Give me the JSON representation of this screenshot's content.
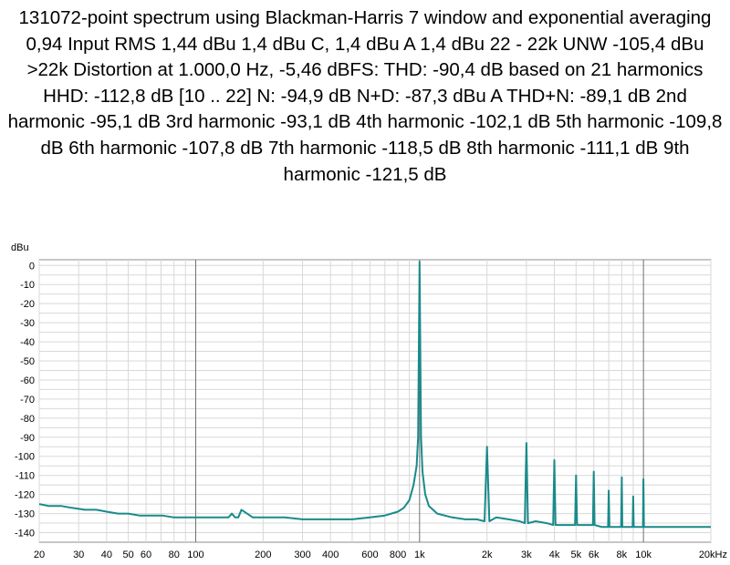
{
  "chart_data": {
    "type": "line",
    "title": "131072-point spectrum using Blackman-Harris 7 window and exponential averaging 0,94 Input RMS 1,44 dBu 1,4 dBu C, 1,4 dBu A 1,4 dBu 22 - 22k UNW -105,4 dBu >22k Distortion at 1.000,0 Hz, -5,46 dBFS: THD: -90,4 dB based on 21 harmonics HHD: -112,8 dB [10 .. 22] N: -94,9 dB N+D: -87,3 dBu A THD+N: -89,1 dB 2nd harmonic -95,1 dB 3rd harmonic -93,1 dB 4th harmonic -102,1 dB 5th harmonic -109,8 dB 6th harmonic -107,8 dB 7th harmonic -118,5 dB 8th harmonic -111,1 dB 9th harmonic -121,5 dB",
    "ylabel": "dBu",
    "x_scale": "log",
    "xlim": [
      20,
      20000
    ],
    "ylim": [
      -145,
      3
    ],
    "grid": true,
    "x_ticks": [
      {
        "value": 20,
        "label": "20"
      },
      {
        "value": 30,
        "label": "30"
      },
      {
        "value": 40,
        "label": "40"
      },
      {
        "value": 50,
        "label": "50"
      },
      {
        "value": 60,
        "label": "60"
      },
      {
        "value": 80,
        "label": "80"
      },
      {
        "value": 100,
        "label": "100"
      },
      {
        "value": 200,
        "label": "200"
      },
      {
        "value": 300,
        "label": "300"
      },
      {
        "value": 400,
        "label": "400"
      },
      {
        "value": 600,
        "label": "600"
      },
      {
        "value": 800,
        "label": "800"
      },
      {
        "value": 1000,
        "label": "1k"
      },
      {
        "value": 2000,
        "label": "2k"
      },
      {
        "value": 3000,
        "label": "3k"
      },
      {
        "value": 4000,
        "label": "4k"
      },
      {
        "value": 5000,
        "label": "5k"
      },
      {
        "value": 6000,
        "label": "6k"
      },
      {
        "value": 8000,
        "label": "8k"
      },
      {
        "value": 10000,
        "label": "10k"
      },
      {
        "value": 20000,
        "label": "20kHz"
      }
    ],
    "y_ticks": [
      0,
      -10,
      -20,
      -30,
      -40,
      -50,
      -60,
      -70,
      -80,
      -90,
      -100,
      -110,
      -120,
      -130,
      -140
    ],
    "series": [
      {
        "color": "#1a8a8a",
        "x": [
          20,
          22,
          25,
          28,
          32,
          36,
          40,
          45,
          50,
          56,
          63,
          71,
          80,
          90,
          100,
          112,
          125,
          140,
          145,
          150,
          155,
          160,
          180,
          200,
          250,
          300,
          350,
          400,
          500,
          600,
          700,
          800,
          850,
          900,
          940,
          970,
          985,
          1000,
          1015,
          1030,
          1060,
          1100,
          1200,
          1400,
          1600,
          1800,
          1950,
          2000,
          2050,
          2200,
          2500,
          2800,
          2950,
          3000,
          3050,
          3300,
          3700,
          3950,
          4000,
          4050,
          4500,
          4950,
          5000,
          5050,
          5500,
          5950,
          6000,
          6050,
          6500,
          6950,
          7000,
          7050,
          7500,
          7950,
          8000,
          8050,
          8500,
          8950,
          9000,
          9050,
          9500,
          9950,
          10000,
          10050,
          11000,
          12000,
          13000,
          14000,
          15000,
          16000,
          17000,
          18000,
          19000,
          20000
        ],
        "y": [
          -125,
          -126,
          -126,
          -127,
          -128,
          -128,
          -129,
          -130,
          -130,
          -131,
          -131,
          -131,
          -132,
          -132,
          -132,
          -132,
          -132,
          -132,
          -130,
          -132,
          -132,
          -128,
          -132,
          -132,
          -132,
          -133,
          -133,
          -133,
          -133,
          -132,
          -131,
          -129,
          -127,
          -123,
          -115,
          -105,
          -90,
          2,
          -90,
          -108,
          -120,
          -126,
          -130,
          -132,
          -133,
          -133,
          -134,
          -95,
          -134,
          -132,
          -133,
          -134,
          -135,
          -93,
          -135,
          -134,
          -135,
          -136,
          -102,
          -136,
          -136,
          -136,
          -110,
          -136,
          -136,
          -136,
          -108,
          -136,
          -137,
          -137,
          -118,
          -137,
          -137,
          -137,
          -111,
          -137,
          -137,
          -137,
          -121,
          -137,
          -137,
          -137,
          -112,
          -137,
          -137,
          -137,
          -137,
          -137,
          -137,
          -137,
          -137,
          -137,
          -137,
          -137
        ]
      }
    ]
  }
}
